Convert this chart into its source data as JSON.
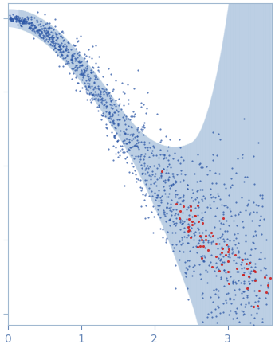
{
  "title": "",
  "xlabel": "",
  "ylabel": "",
  "xlim": [
    0,
    3.6
  ],
  "ylim": [
    -0.04,
    1.05
  ],
  "bg_color": "#ffffff",
  "band_color": "#c8d8ed",
  "band_edge_color": "#b0c8df",
  "dot_color_main": "#2a55a5",
  "dot_color_outlier": "#cc2222",
  "xticks": [
    0,
    1,
    2,
    3
  ],
  "yticks": [
    0.0,
    0.25,
    0.5,
    0.75,
    1.0
  ],
  "seed": 12,
  "n_main": 1400,
  "n_outlier": 55
}
